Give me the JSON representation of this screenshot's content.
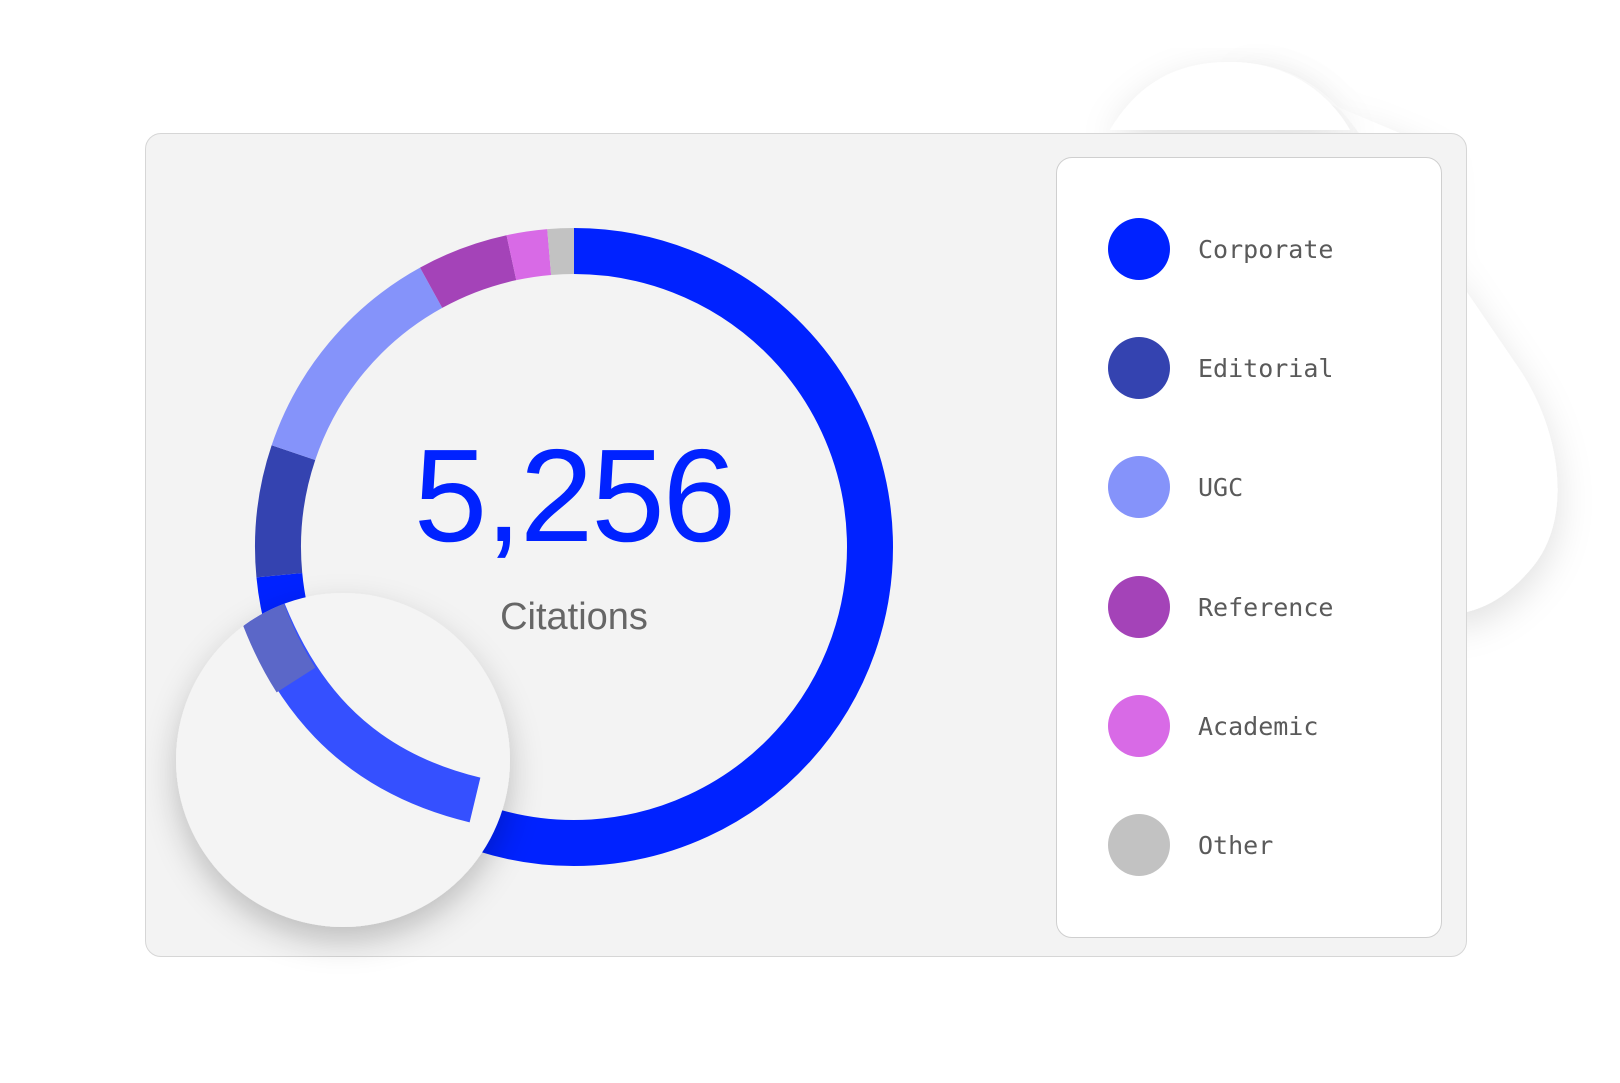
{
  "chart_data": {
    "type": "pie",
    "variant": "donut",
    "total_value": "5,256",
    "total_label": "Citations",
    "slices": [
      {
        "name": "Corporate",
        "value": 0.715,
        "color": "#0022ff"
      },
      {
        "name": "Editorial",
        "value": 0.065,
        "color": "#3443b0"
      },
      {
        "name": "UGC",
        "value": 0.115,
        "color": "#8593fa"
      },
      {
        "name": "Reference",
        "value": 0.045,
        "color": "#a443b8"
      },
      {
        "name": "Academic",
        "value": 0.02,
        "color": "#d86ae6"
      },
      {
        "name": "Other",
        "value": 0.013,
        "color": "#c2c2c2"
      }
    ],
    "legend_position": "right"
  },
  "legend": {
    "items": [
      {
        "label": "Corporate",
        "color": "#0022ff"
      },
      {
        "label": "Editorial",
        "color": "#3443b0"
      },
      {
        "label": "UGC",
        "color": "#8593fa"
      },
      {
        "label": "Reference",
        "color": "#a443b8"
      },
      {
        "label": "Academic",
        "color": "#d86ae6"
      },
      {
        "label": "Other",
        "color": "#c2c2c2"
      }
    ]
  }
}
